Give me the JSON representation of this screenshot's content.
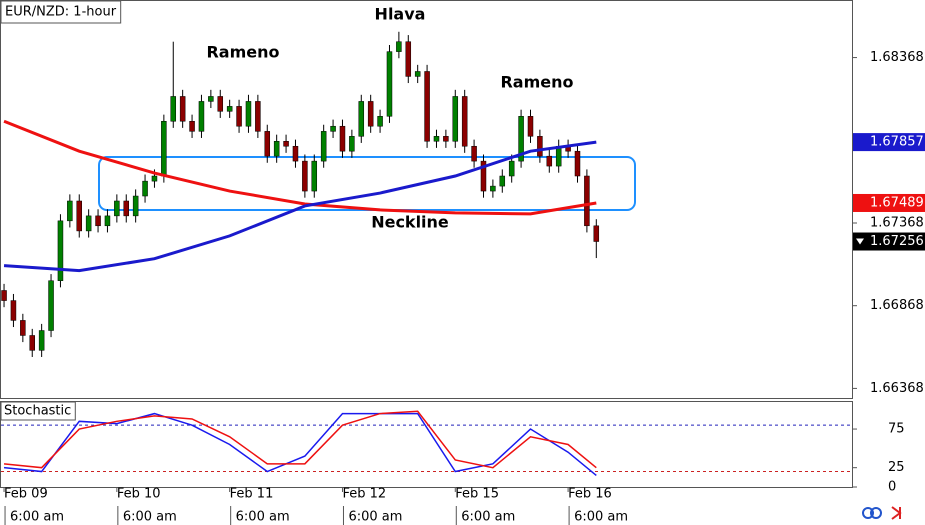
{
  "chart_data": [
    {
      "type": "candlestick",
      "title": "EUR/NZD: 1-hour",
      "open": [
        1.6696,
        1.66899,
        1.66779,
        1.66688,
        1.66598,
        1.66718,
        1.67019,
        1.67381,
        1.67501,
        1.6732,
        1.67411,
        1.67351,
        1.67411,
        1.67501,
        1.67411,
        1.67531,
        1.67621,
        1.67652,
        1.67983,
        1.68133,
        1.67983,
        1.67922,
        1.68103,
        1.68133,
        1.68043,
        1.68073,
        1.67953,
        1.68103,
        1.67922,
        1.67772,
        1.67862,
        1.67832,
        1.67742,
        1.67561,
        1.67742,
        1.67922,
        1.67953,
        1.67802,
        1.67892,
        1.68103,
        1.67953,
        1.68013,
        1.68404,
        1.68464,
        1.68254,
        1.68284,
        1.67862,
        1.67892,
        1.67862,
        1.68133,
        1.67832,
        1.67742,
        1.67561,
        1.67591,
        1.67652,
        1.67742,
        1.68013,
        1.67892,
        1.67772,
        1.67712,
        1.67832,
        1.67802,
        1.67652,
        1.67351
      ],
      "high": [
        1.67,
        1.66939,
        1.66819,
        1.66728,
        1.66758,
        1.67059,
        1.67421,
        1.67541,
        1.67541,
        1.67451,
        1.67451,
        1.67451,
        1.67541,
        1.67541,
        1.67571,
        1.67661,
        1.67692,
        1.68023,
        1.68464,
        1.68173,
        1.68023,
        1.68143,
        1.68173,
        1.68173,
        1.68113,
        1.68113,
        1.68143,
        1.68143,
        1.67962,
        1.67902,
        1.67902,
        1.67872,
        1.67782,
        1.67782,
        1.67962,
        1.67993,
        1.67993,
        1.67932,
        1.68143,
        1.68143,
        1.68053,
        1.68444,
        1.68524,
        1.68504,
        1.68324,
        1.68324,
        1.67932,
        1.67932,
        1.68173,
        1.68173,
        1.67872,
        1.67782,
        1.67631,
        1.67692,
        1.67782,
        1.68053,
        1.68053,
        1.67932,
        1.67812,
        1.67872,
        1.67872,
        1.67842,
        1.67692,
        1.67391
      ],
      "low": [
        1.66859,
        1.66739,
        1.66648,
        1.66558,
        1.66558,
        1.66678,
        1.66979,
        1.67341,
        1.6728,
        1.6728,
        1.67311,
        1.67311,
        1.67371,
        1.67371,
        1.67371,
        1.67491,
        1.67581,
        1.67612,
        1.67943,
        1.67943,
        1.67882,
        1.67882,
        1.68063,
        1.68003,
        1.68003,
        1.67913,
        1.67913,
        1.67882,
        1.67732,
        1.67732,
        1.67792,
        1.67702,
        1.67521,
        1.67521,
        1.67702,
        1.67882,
        1.67762,
        1.67762,
        1.67852,
        1.67913,
        1.67913,
        1.67973,
        1.68364,
        1.68214,
        1.68214,
        1.67822,
        1.67822,
        1.67822,
        1.67822,
        1.67792,
        1.67702,
        1.67521,
        1.67521,
        1.67551,
        1.67612,
        1.67702,
        1.67852,
        1.67732,
        1.67672,
        1.67672,
        1.67762,
        1.67612,
        1.67311,
        1.67156
      ],
      "close": [
        1.66899,
        1.66779,
        1.66688,
        1.66598,
        1.66718,
        1.67019,
        1.67381,
        1.67501,
        1.6732,
        1.67411,
        1.67351,
        1.67411,
        1.67501,
        1.67411,
        1.67531,
        1.67621,
        1.67652,
        1.67983,
        1.68133,
        1.67983,
        1.67922,
        1.68103,
        1.68133,
        1.68043,
        1.68073,
        1.67953,
        1.68103,
        1.67922,
        1.67772,
        1.67862,
        1.67832,
        1.67742,
        1.67561,
        1.67742,
        1.67922,
        1.67953,
        1.67802,
        1.67892,
        1.68103,
        1.67953,
        1.68013,
        1.68404,
        1.68464,
        1.68254,
        1.68284,
        1.67862,
        1.67892,
        1.67862,
        1.68133,
        1.67832,
        1.67742,
        1.67561,
        1.67591,
        1.67652,
        1.67742,
        1.68013,
        1.67892,
        1.67772,
        1.67712,
        1.67832,
        1.67802,
        1.67652,
        1.67351,
        1.67256
      ],
      "up_color": "#008000",
      "down_color": "#8b0000",
      "lines": [
        {
          "color": "#ee1111",
          "x": [
            0,
            8,
            16,
            24,
            32,
            40,
            48,
            56,
            63
          ],
          "values": [
            1.67983,
            1.67802,
            1.6767,
            1.67561,
            1.67483,
            1.67447,
            1.67429,
            1.67423,
            1.67489
          ]
        },
        {
          "color": "#1a1acc",
          "x": [
            0,
            8,
            16,
            24,
            32,
            40,
            48,
            56,
            63
          ],
          "values": [
            1.6711,
            1.6708,
            1.67152,
            1.6729,
            1.67471,
            1.67549,
            1.67652,
            1.67802,
            1.67857
          ]
        }
      ],
      "price_labels": [
        {
          "value": 1.67857,
          "color": "#1a1acc"
        },
        {
          "value": 1.67489,
          "color": "#ee1111"
        },
        {
          "value": 1.67256,
          "color": "#000000"
        }
      ],
      "annotations": [
        "Hlava",
        "Rameno",
        "Rameno",
        "Neckline"
      ],
      "xlim": [
        -0.43,
        90.2
      ],
      "ylim": [
        1.6631,
        1.6871
      ],
      "yticks": [
        1.68368,
        1.67368,
        1.66868,
        1.66368
      ],
      "xticks": [
        {
          "value": 0,
          "label": "Feb 09"
        },
        {
          "value": 12,
          "label": "Feb 10"
        },
        {
          "value": 24,
          "label": "Feb 11"
        },
        {
          "value": 36,
          "label": "Feb 12"
        },
        {
          "value": 48,
          "label": "Feb 15"
        },
        {
          "value": 60,
          "label": "Feb 16"
        }
      ],
      "xticks_time": [
        {
          "value": 0,
          "label": "6:00 am"
        },
        {
          "value": 12,
          "label": "6:00 am"
        },
        {
          "value": 24,
          "label": "6:00 am"
        },
        {
          "value": 36,
          "label": "6:00 am"
        },
        {
          "value": 48,
          "label": "6:00 am"
        },
        {
          "value": 60,
          "label": "6:00 am"
        }
      ]
    },
    {
      "type": "line",
      "title": "Stochastic",
      "x": [
        0,
        4,
        8,
        12,
        16,
        20,
        24,
        28,
        32,
        36,
        40,
        44,
        48,
        52,
        56,
        60,
        63
      ],
      "series": [
        {
          "color": "#1a1aee",
          "values": [
            25,
            20,
            85,
            82,
            95,
            80,
            55,
            20,
            40,
            95,
            95,
            95,
            20,
            30,
            75,
            45,
            15
          ]
        },
        {
          "color": "#ee1111",
          "values": [
            30,
            25,
            75,
            85,
            92,
            88,
            65,
            30,
            30,
            80,
            95,
            98,
            35,
            25,
            65,
            55,
            25
          ]
        }
      ],
      "levels": [
        {
          "value": 80,
          "color": "#2222bb"
        },
        {
          "value": 20,
          "color": "#cc2222"
        }
      ],
      "xlim": [
        -0.43,
        90.2
      ],
      "ylim": [
        0,
        110
      ],
      "yticks": [
        0,
        25,
        75
      ]
    }
  ]
}
